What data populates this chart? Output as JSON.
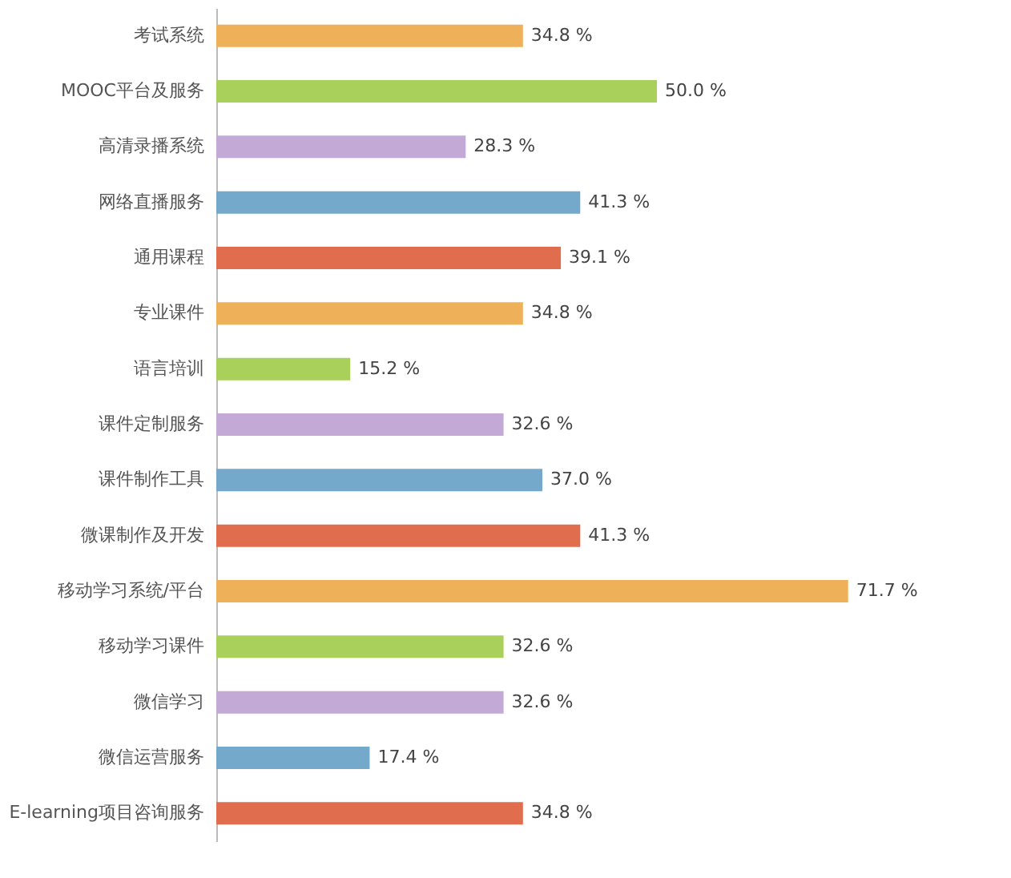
{
  "chart_data": {
    "type": "bar",
    "orientation": "horizontal",
    "categories": [
      "考试系统",
      "MOOC平台及服务",
      "高清录播系统",
      "网络直播服务",
      "通用课程",
      "专业课件",
      "语言培训",
      "课件定制服务",
      "课件制作工具",
      "微课制作及开发",
      "移动学习系统/平台",
      "移动学习课件",
      "微信学习",
      "微信运营服务",
      "E-learning项目咨询服务"
    ],
    "values": [
      34.8,
      50.0,
      28.3,
      41.3,
      39.1,
      34.8,
      15.2,
      32.6,
      37.0,
      41.3,
      71.7,
      32.6,
      32.6,
      17.4,
      34.8
    ],
    "value_labels": [
      "34.8 %",
      "50.0 %",
      "28.3 %",
      "41.3 %",
      "39.1 %",
      "34.8 %",
      "15.2 %",
      "32.6 %",
      "37.0 %",
      "41.3 %",
      "71.7 %",
      "32.6 %",
      "32.6 %",
      "17.4 %",
      "34.8 %"
    ],
    "colors": [
      "#efb05a",
      "#a9d05a",
      "#c3a9d6",
      "#74a9cb",
      "#df6d4e",
      "#efb05a",
      "#a9d05a",
      "#c3a9d6",
      "#74a9cb",
      "#df6d4e",
      "#efb05a",
      "#a9d05a",
      "#c3a9d6",
      "#74a9cb",
      "#df6d4e"
    ],
    "grid": false
  }
}
